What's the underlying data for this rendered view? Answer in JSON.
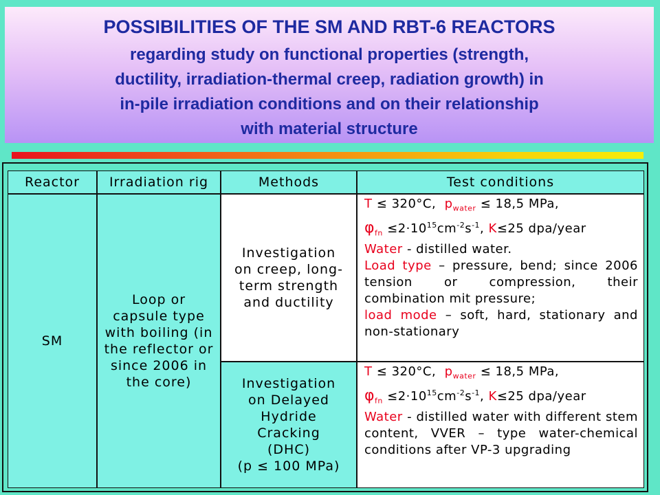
{
  "title": {
    "main": "POSSIBILITIES OF THE SM AND RBT-6 REACTORS",
    "sub_lines": [
      "regarding study on functional properties (strength,",
      "ductility, irradiation-thermal creep, radiation growth) in",
      "in-pile irradiation conditions and on their relationship",
      "with material structure"
    ]
  },
  "table": {
    "headers": [
      "Reactor",
      "Irradiation rig",
      "Methods",
      "Test conditions"
    ],
    "reactor": "SM",
    "rig_lines": [
      "Loop or",
      "capsule type",
      "with boiling (in",
      "the reflector or",
      "since 2006 in",
      "the core)"
    ],
    "methods": [
      {
        "lines": [
          "Investigation",
          "on creep, long-",
          "term strength",
          "and ductility"
        ]
      },
      {
        "lines": [
          "Investigation",
          "on Delayed",
          "Hydride",
          "Cracking",
          "(DHC)",
          "(p ≤ 100 MPa)"
        ]
      }
    ],
    "common": {
      "t_label": "T",
      "le": "≤",
      "t_value": "320°C,",
      "p_label": "p",
      "p_sub": "water",
      "p_value": "18,5 MPa,",
      "phi": "φ",
      "phi_sub": "fn",
      "flux_a": "2·10",
      "flux_exp1": "15",
      "flux_b": "cm",
      "flux_exp2": "-2",
      "flux_c": "s",
      "flux_exp3": "-1",
      "flux_d": ",",
      "k_label": "K",
      "k_value": "25 dpa/year",
      "water_label": "Water"
    },
    "conditions1": {
      "water_text": " - distilled water.",
      "load_type_label": "Load type",
      "load_type_text": " – pressure, bend; since 2006 tension or compression, their combination mit pressure;",
      "load_mode_label": "load mode",
      "load_mode_text": " – soft, hard, stationary and non-stationary"
    },
    "conditions2": {
      "water_text": " - distilled water with different stem content, VVER – type water-chemical conditions after VP-3 upgrading"
    }
  },
  "colors": {
    "background": "#5FE6C7",
    "title_text": "#1E2AA0",
    "cell_aqua": "#7FF1E4",
    "highlight_red": "#E8001C"
  }
}
